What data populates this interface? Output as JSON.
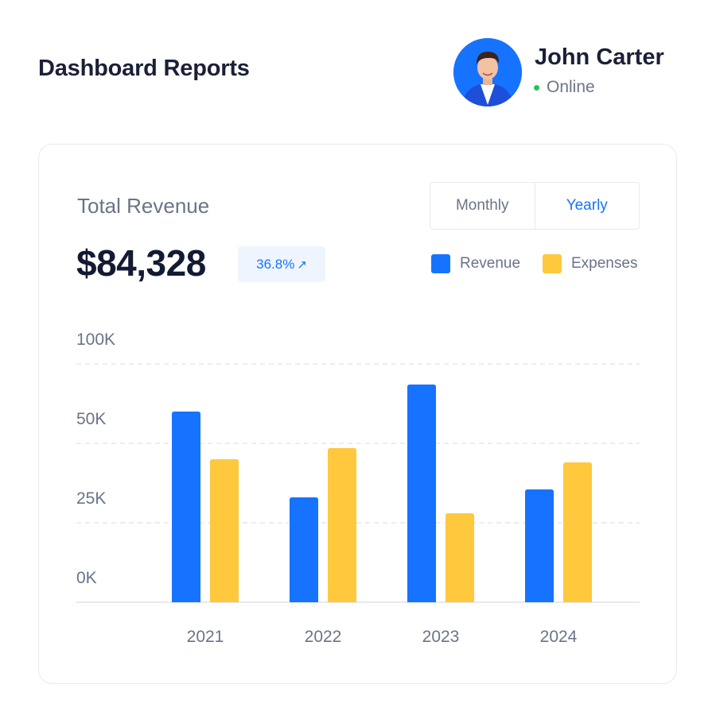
{
  "header": {
    "title": "Dashboard Reports",
    "user": {
      "name": "John Carter",
      "status": "Online",
      "status_color": "#22c55e"
    }
  },
  "card": {
    "title": "Total Revenue",
    "total": "$84,328",
    "growth": "36.8%",
    "growth_icon": "arrow-up-right-icon",
    "toggle": {
      "options": [
        "Monthly",
        "Yearly"
      ],
      "selected": "Yearly"
    }
  },
  "chart_data": {
    "type": "bar",
    "categories": [
      "2021",
      "2022",
      "2023",
      "2024"
    ],
    "series": [
      {
        "name": "Revenue",
        "color": "#1673ff",
        "values": [
          60,
          33,
          68.5,
          35.5
        ]
      },
      {
        "name": "Expenses",
        "color": "#ffc83d",
        "values": [
          45,
          48.5,
          28,
          44
        ]
      }
    ],
    "y_ticks": [
      {
        "value": 0,
        "label": "0K"
      },
      {
        "value": 25,
        "label": "25K"
      },
      {
        "value": 50,
        "label": "50K"
      },
      {
        "value": 100,
        "label": "100K"
      }
    ],
    "ylim": [
      0,
      75
    ],
    "grid": true,
    "legend_position": "top-right",
    "title": "",
    "xlabel": "",
    "ylabel": ""
  }
}
